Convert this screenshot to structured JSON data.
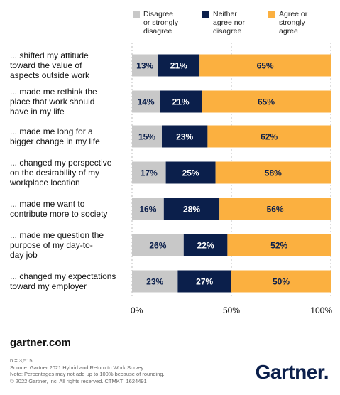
{
  "chart_data": {
    "type": "bar",
    "orientation": "horizontal",
    "stacked": true,
    "categories": [
      "... shifted my attitude toward the value of aspects outside work",
      "... made me rethink the place that work should have in my life",
      "... made me long for a bigger change in my life",
      "... changed my perspective on the desirability of my workplace location",
      "... made me want to contribute more to society",
      "... made me question the purpose of my day-to-day job",
      "... changed my expectations toward my employer"
    ],
    "category_lines": [
      [
        "... shifted my attitude",
        "toward the value of",
        "aspects outside work"
      ],
      [
        "... made me rethink the",
        "place that work should",
        "have in my life"
      ],
      [
        "... made me long for a",
        "bigger change in my life"
      ],
      [
        "... changed my perspective",
        "on the desirability of my",
        "workplace location"
      ],
      [
        "... made me want to",
        "contribute more to society"
      ],
      [
        "... made me question the",
        "purpose of my day-to-",
        "day job"
      ],
      [
        "... changed my expectations",
        "toward my employer"
      ]
    ],
    "series": [
      {
        "name": "Disagree or strongly disagree",
        "name_lines": [
          "Disagree",
          "or strongly",
          "disagree"
        ],
        "color": "#c8c8c8",
        "text_color": "#0b1f4b",
        "values": [
          13,
          14,
          15,
          17,
          16,
          26,
          23
        ],
        "labels": [
          "13%",
          "14%",
          "15%",
          "17%",
          "16%",
          "26%",
          "23%"
        ]
      },
      {
        "name": "Neither agree nor disagree",
        "name_lines": [
          "Neither",
          "agree nor",
          "disagree"
        ],
        "color": "#0b1f4b",
        "text_color": "#ffffff",
        "values": [
          21,
          21,
          23,
          25,
          28,
          22,
          27
        ],
        "labels": [
          "21%",
          "21%",
          "23%",
          "25%",
          "28%",
          "22%",
          "27%"
        ]
      },
      {
        "name": "Agree or strongly agree",
        "name_lines": [
          "Agree or",
          "strongly",
          "agree"
        ],
        "color": "#fbb040",
        "text_color": "#0b1f4b",
        "values": [
          65,
          65,
          62,
          58,
          56,
          52,
          50
        ],
        "labels": [
          "65%",
          "65%",
          "62%",
          "58%",
          "56%",
          "52%",
          "50%"
        ]
      }
    ],
    "xlim": [
      0,
      100
    ],
    "ticks": [
      0,
      50,
      100
    ],
    "tick_labels": [
      "0%",
      "50%",
      "100%"
    ],
    "legend_position": "top",
    "grid": true
  },
  "footer": {
    "website": "gartner.com",
    "notes": [
      "n = 3,515",
      "Source: Gartner 2021 Hybrid and Return to Work Survey",
      "Note: Percentages may not add up to 100% because of rounding.",
      "© 2022 Gartner, Inc. All rights reserved. CTMKT_1624491"
    ],
    "logo": "Gartner",
    "logo_dot": "."
  }
}
